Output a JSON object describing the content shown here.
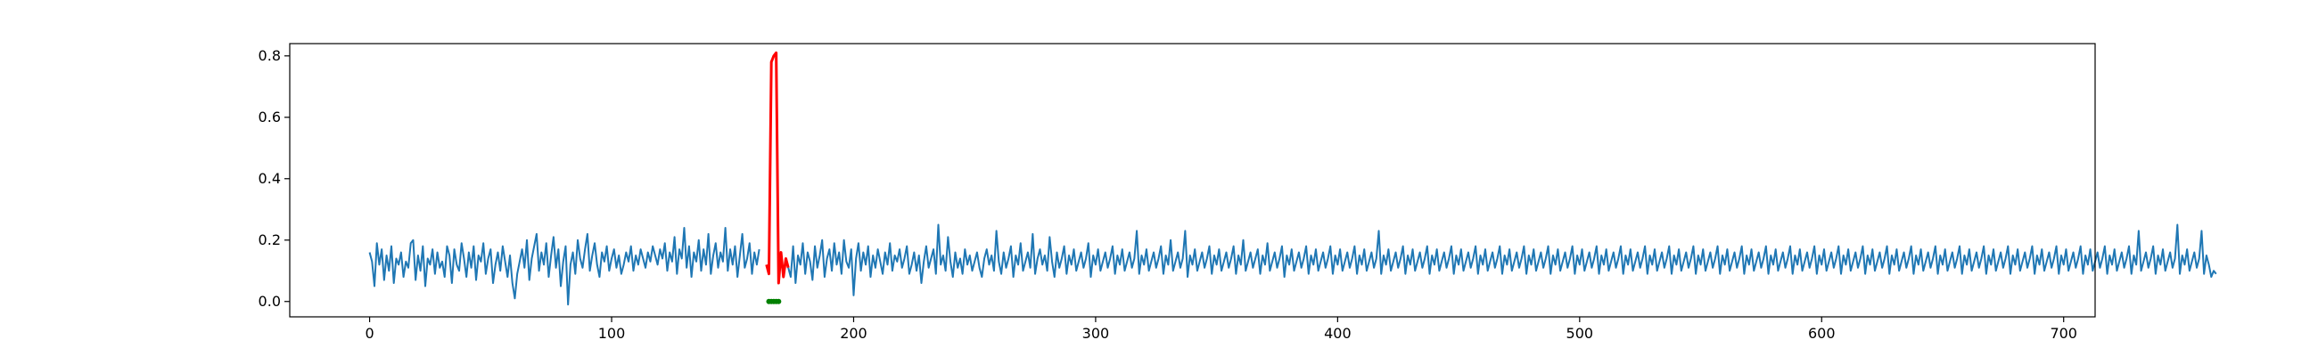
{
  "chart_data": {
    "type": "line",
    "title": "",
    "xlabel": "",
    "ylabel": "",
    "xlim": [
      -33,
      713
    ],
    "ylim": [
      -0.05,
      0.84
    ],
    "x_ticks": [
      0,
      100,
      200,
      300,
      400,
      500,
      600,
      700
    ],
    "x_tick_labels": [
      "0",
      "100",
      "200",
      "300",
      "400",
      "500",
      "600",
      "700"
    ],
    "y_ticks": [
      0.0,
      0.2,
      0.4,
      0.6,
      0.8
    ],
    "y_tick_labels": [
      "0.0",
      "0.2",
      "0.4",
      "0.6",
      "0.8"
    ],
    "grid": false,
    "legend": "none",
    "series": [
      {
        "color": "#1f77b4",
        "x_start": 0,
        "x_step": 1,
        "values": [
          0.16,
          0.13,
          0.05,
          0.19,
          0.12,
          0.17,
          0.07,
          0.15,
          0.1,
          0.18,
          0.06,
          0.14,
          0.12,
          0.16,
          0.08,
          0.13,
          0.11,
          0.19,
          0.2,
          0.07,
          0.15,
          0.1,
          0.18,
          0.05,
          0.14,
          0.12,
          0.17,
          0.09,
          0.16,
          0.11,
          0.13,
          0.08,
          0.18,
          0.15,
          0.06,
          0.17,
          0.12,
          0.1,
          0.19,
          0.14,
          0.08,
          0.16,
          0.11,
          0.18,
          0.07,
          0.15,
          0.13,
          0.19,
          0.09,
          0.14,
          0.17,
          0.06,
          0.12,
          0.16,
          0.1,
          0.18,
          0.13,
          0.08,
          0.15,
          0.06,
          0.01,
          0.09,
          0.13,
          0.17,
          0.11,
          0.2,
          0.07,
          0.14,
          0.18,
          0.22,
          0.1,
          0.16,
          0.12,
          0.19,
          0.08,
          0.15,
          0.21,
          0.11,
          0.17,
          0.05,
          0.13,
          0.18,
          -0.01,
          0.12,
          0.16,
          0.09,
          0.2,
          0.14,
          0.11,
          0.17,
          0.22,
          0.1,
          0.15,
          0.19,
          0.12,
          0.08,
          0.16,
          0.13,
          0.18,
          0.1,
          0.14,
          0.17,
          0.11,
          0.15,
          0.09,
          0.12,
          0.16,
          0.13,
          0.18,
          0.1,
          0.15,
          0.12,
          0.17,
          0.14,
          0.11,
          0.16,
          0.13,
          0.18,
          0.15,
          0.12,
          0.17,
          0.14,
          0.19,
          0.1,
          0.16,
          0.13,
          0.21,
          0.09,
          0.17,
          0.14,
          0.24,
          0.11,
          0.18,
          0.08,
          0.16,
          0.13,
          0.2,
          0.1,
          0.17,
          0.12,
          0.22,
          0.09,
          0.15,
          0.19,
          0.11,
          0.16,
          0.13,
          0.24,
          0.1,
          0.17,
          0.12,
          0.18,
          0.08,
          0.15,
          0.22,
          0.11,
          0.14,
          0.19,
          0.09,
          0.16,
          0.12,
          0.17
        ],
        "role": "signal"
      },
      {
        "color": "#ff0000",
        "x_start": 164,
        "x_step": 1,
        "values": [
          0.12,
          0.09,
          0.78,
          0.8,
          0.81,
          0.06,
          0.16,
          0.08,
          0.14,
          0.11
        ],
        "role": "anomaly-highlight"
      },
      {
        "color": "#1f77b4",
        "x_start": 173,
        "x_step": 1,
        "values": [
          0.11,
          0.08,
          0.18,
          0.06,
          0.15,
          0.12,
          0.19,
          0.09,
          0.16,
          0.13,
          0.07,
          0.18,
          0.11,
          0.15,
          0.2,
          0.08,
          0.14,
          0.17,
          0.1,
          0.19,
          0.12,
          0.16,
          0.09,
          0.2,
          0.13,
          0.11,
          0.17,
          0.02,
          0.14,
          0.19,
          0.1,
          0.16,
          0.12,
          0.18,
          0.08,
          0.15,
          0.11,
          0.17,
          0.13,
          0.09,
          0.16,
          0.12,
          0.19,
          0.1,
          0.15,
          0.13,
          0.17,
          0.11,
          0.14,
          0.18,
          0.09,
          0.12,
          0.16,
          0.1,
          0.15,
          0.06,
          0.13,
          0.18,
          0.11,
          0.14,
          0.17,
          0.09,
          0.25,
          0.12,
          0.15,
          0.1,
          0.21,
          0.13,
          0.08,
          0.16,
          0.11,
          0.14,
          0.09,
          0.17,
          0.12,
          0.15,
          0.1,
          0.13,
          0.16,
          0.11,
          0.08,
          0.14,
          0.17,
          0.12,
          0.15,
          0.1,
          0.23,
          0.13,
          0.09,
          0.16,
          0.11,
          0.14,
          0.18,
          0.08,
          0.15,
          0.12,
          0.19,
          0.1,
          0.13,
          0.16,
          0.11,
          0.22,
          0.09,
          0.14,
          0.17,
          0.12,
          0.15,
          0.1,
          0.21,
          0.13,
          0.08,
          0.16,
          0.11,
          0.14,
          0.18,
          0.09,
          0.15,
          0.12,
          0.17,
          0.1,
          0.13,
          0.16,
          0.11,
          0.14,
          0.19,
          0.08,
          0.15,
          0.12,
          0.17,
          0.1,
          0.13,
          0.16,
          0.11,
          0.14,
          0.18,
          0.09,
          0.15,
          0.12,
          0.17,
          0.1,
          0.13,
          0.16,
          0.11,
          0.14,
          0.23,
          0.09,
          0.15,
          0.12,
          0.17,
          0.1,
          0.13,
          0.16,
          0.11,
          0.14,
          0.18,
          0.09,
          0.15,
          0.12,
          0.2,
          0.1,
          0.13,
          0.16,
          0.11,
          0.14,
          0.23,
          0.08,
          0.15,
          0.12,
          0.17,
          0.1,
          0.13,
          0.16,
          0.11,
          0.14,
          0.18,
          0.09,
          0.15,
          0.12,
          0.17,
          0.1,
          0.13,
          0.16,
          0.11,
          0.14,
          0.18,
          0.09,
          0.15,
          0.12,
          0.2,
          0.1,
          0.13,
          0.16,
          0.11,
          0.14,
          0.17,
          0.09,
          0.15,
          0.12,
          0.19,
          0.1,
          0.13,
          0.16,
          0.11,
          0.14,
          0.18,
          0.08,
          0.15,
          0.12,
          0.17,
          0.1,
          0.13,
          0.16,
          0.11,
          0.14,
          0.18,
          0.09,
          0.15,
          0.12,
          0.17,
          0.1,
          0.13,
          0.16,
          0.11,
          0.14,
          0.18,
          0.09,
          0.15,
          0.12,
          0.17,
          0.1,
          0.13,
          0.16,
          0.11,
          0.14,
          0.18,
          0.09,
          0.15,
          0.12,
          0.17,
          0.1,
          0.13,
          0.16,
          0.11,
          0.14,
          0.23,
          0.09,
          0.15,
          0.12,
          0.17,
          0.1,
          0.13,
          0.16,
          0.11,
          0.14,
          0.18,
          0.09,
          0.15,
          0.12,
          0.17,
          0.1,
          0.13,
          0.16,
          0.11,
          0.14,
          0.18,
          0.09,
          0.15,
          0.12,
          0.17,
          0.1,
          0.13,
          0.16,
          0.11,
          0.14,
          0.18,
          0.09,
          0.15,
          0.12,
          0.17,
          0.1,
          0.13,
          0.16,
          0.11,
          0.14,
          0.18,
          0.09,
          0.15,
          0.12,
          0.17,
          0.1,
          0.13,
          0.16,
          0.11,
          0.14,
          0.18,
          0.09,
          0.15,
          0.12,
          0.17,
          0.1,
          0.13,
          0.16,
          0.11,
          0.14,
          0.18,
          0.09,
          0.15,
          0.12,
          0.17,
          0.1,
          0.13,
          0.16,
          0.11,
          0.14,
          0.18,
          0.09,
          0.15,
          0.12,
          0.17,
          0.1,
          0.13,
          0.16,
          0.11,
          0.14,
          0.18,
          0.09,
          0.15,
          0.12,
          0.17,
          0.1,
          0.13,
          0.16,
          0.11,
          0.14,
          0.18,
          0.09,
          0.15,
          0.12,
          0.17,
          0.1,
          0.13,
          0.16,
          0.11,
          0.14,
          0.18,
          0.09,
          0.15,
          0.12,
          0.17,
          0.1,
          0.13,
          0.16,
          0.11,
          0.14,
          0.18,
          0.09,
          0.15,
          0.12,
          0.17,
          0.1,
          0.13,
          0.16,
          0.11,
          0.14,
          0.18,
          0.09,
          0.15,
          0.12,
          0.17,
          0.1,
          0.13,
          0.16,
          0.11,
          0.14,
          0.18,
          0.09,
          0.15,
          0.12,
          0.17,
          0.1,
          0.13,
          0.16,
          0.11,
          0.14,
          0.18,
          0.09,
          0.15,
          0.12,
          0.17,
          0.1,
          0.13,
          0.16,
          0.11,
          0.14,
          0.18,
          0.09,
          0.15,
          0.12,
          0.17,
          0.1,
          0.13,
          0.16,
          0.11,
          0.14,
          0.18,
          0.09,
          0.15,
          0.12,
          0.17,
          0.1,
          0.13,
          0.16,
          0.11,
          0.14,
          0.18,
          0.09,
          0.15,
          0.12,
          0.17,
          0.1,
          0.13,
          0.16,
          0.11,
          0.14,
          0.18,
          0.09,
          0.15,
          0.12,
          0.17,
          0.1,
          0.13,
          0.16,
          0.11,
          0.14,
          0.18,
          0.09,
          0.15,
          0.12,
          0.17,
          0.1,
          0.13,
          0.16,
          0.11,
          0.14,
          0.18,
          0.09,
          0.15,
          0.12,
          0.17,
          0.1,
          0.13,
          0.16,
          0.11,
          0.14,
          0.18,
          0.09,
          0.15,
          0.12,
          0.17,
          0.1,
          0.13,
          0.16,
          0.11,
          0.14,
          0.18,
          0.09,
          0.15,
          0.12,
          0.17,
          0.1,
          0.13,
          0.16,
          0.11,
          0.14,
          0.18,
          0.09,
          0.15,
          0.12,
          0.17,
          0.1,
          0.13,
          0.16,
          0.11,
          0.14,
          0.18,
          0.09,
          0.15,
          0.12,
          0.17,
          0.1,
          0.13,
          0.16,
          0.11,
          0.14,
          0.18,
          0.09,
          0.15,
          0.12,
          0.17,
          0.1,
          0.13,
          0.16,
          0.11,
          0.14,
          0.18,
          0.09,
          0.15,
          0.12,
          0.17,
          0.1,
          0.13,
          0.16,
          0.11,
          0.14,
          0.18,
          0.09,
          0.15,
          0.12,
          0.17,
          0.1,
          0.13,
          0.16,
          0.11,
          0.14,
          0.18,
          0.09,
          0.15,
          0.12,
          0.17,
          0.1,
          0.13,
          0.16,
          0.11,
          0.14,
          0.18,
          0.09,
          0.15,
          0.12,
          0.17,
          0.1,
          0.13,
          0.16,
          0.11,
          0.14,
          0.18,
          0.09,
          0.15,
          0.12,
          0.17,
          0.1,
          0.13,
          0.16,
          0.11,
          0.14,
          0.18,
          0.09,
          0.15,
          0.12,
          0.23,
          0.1,
          0.13,
          0.16,
          0.11,
          0.14,
          0.18,
          0.09,
          0.15,
          0.12,
          0.17,
          0.1,
          0.13,
          0.16,
          0.11,
          0.14,
          0.25,
          0.09,
          0.15,
          0.12,
          0.17,
          0.1,
          0.13,
          0.16,
          0.11,
          0.14,
          0.23,
          0.09,
          0.15,
          0.12,
          0.08,
          0.1,
          0.09
        ],
        "role": "signal"
      }
    ],
    "markers": {
      "color": "#008000",
      "x": [
        165,
        166,
        167,
        168,
        169
      ],
      "y": [
        0.0,
        0.0,
        0.0,
        0.0,
        0.0
      ]
    }
  }
}
